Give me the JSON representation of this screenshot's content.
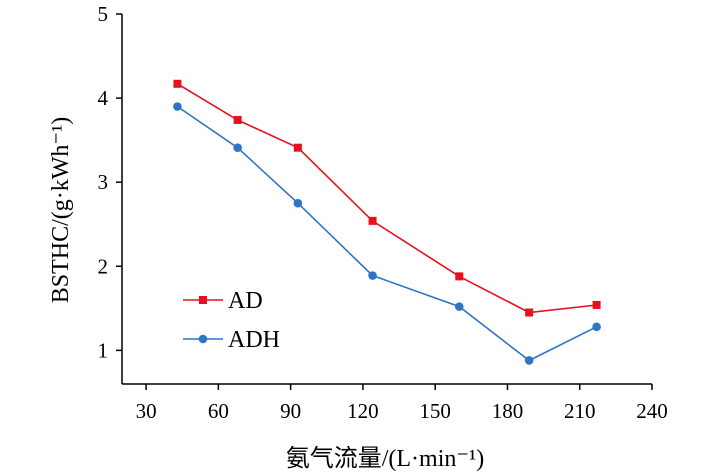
{
  "chart_data": {
    "type": "line",
    "title": "",
    "xlabel": "氨气流量/(L·min⁻¹)",
    "ylabel": "BSTHC/(g·kWh⁻¹)",
    "xlim": [
      20,
      240
    ],
    "ylim": [
      0.6,
      5
    ],
    "xticks": [
      30,
      60,
      90,
      120,
      150,
      180,
      210,
      240
    ],
    "yticks": [
      1,
      2,
      3,
      4,
      5
    ],
    "grid": false,
    "legend_position": "lower-left",
    "series": [
      {
        "name": "AD",
        "color": "#e8101e",
        "marker": "square",
        "x": [
          43,
          68,
          93,
          124,
          160,
          189,
          217
        ],
        "y": [
          4.17,
          3.74,
          3.41,
          2.54,
          1.88,
          1.45,
          1.54
        ]
      },
      {
        "name": "ADH",
        "color": "#2f74c5",
        "marker": "circle",
        "x": [
          43,
          68,
          93,
          124,
          160,
          189,
          217
        ],
        "y": [
          3.9,
          3.41,
          2.75,
          1.89,
          1.52,
          0.88,
          1.28
        ]
      }
    ]
  }
}
